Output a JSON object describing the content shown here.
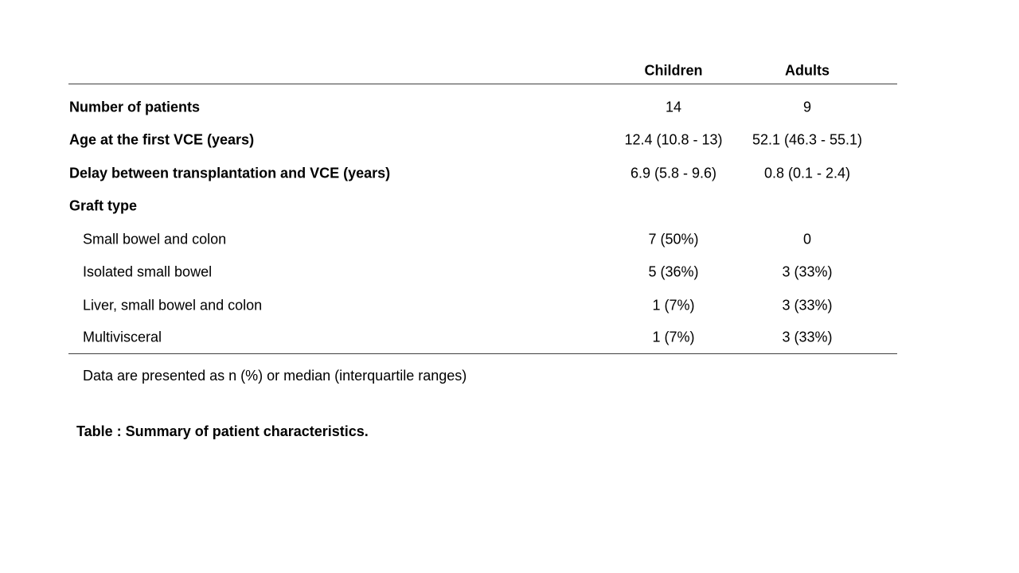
{
  "table": {
    "columns": [
      "Children",
      "Adults"
    ],
    "rows": [
      {
        "label": "Number of patients",
        "children": "14",
        "adults": "9"
      },
      {
        "label": "Age at the first VCE (years)",
        "children": "12.4 (10.8 - 13)",
        "adults": "52.1 (46.3 - 55.1)"
      },
      {
        "label": "Delay between transplantation  and VCE (years)",
        "children": "6.9 (5.8 - 9.6)",
        "adults": "0.8 (0.1 - 2.4)"
      },
      {
        "label": "Graft type",
        "children": "",
        "adults": ""
      },
      {
        "label": "Small bowel and colon",
        "children": "7 (50%)",
        "adults": "0"
      },
      {
        "label": "Isolated small bowel",
        "children": "5 (36%)",
        "adults": "3 (33%)"
      },
      {
        "label": "Liver,  small bowel and colon",
        "children": "1 (7%)",
        "adults": "3 (33%)"
      },
      {
        "label": "Multivisceral",
        "children": "1 (7%)",
        "adults": "3 (33%)"
      }
    ]
  },
  "footnote": "Data are presented  as n (%) or median (interquartile ranges)",
  "caption": "Table : Summary of patient characteristics."
}
